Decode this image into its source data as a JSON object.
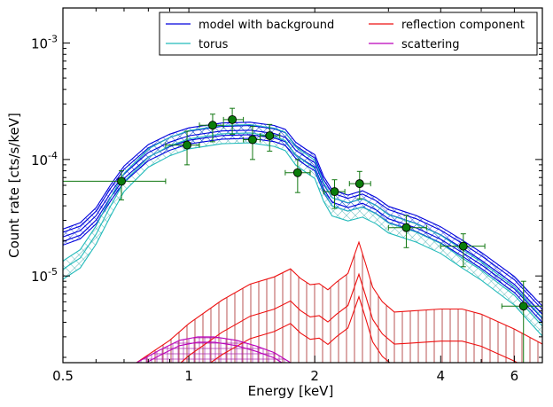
{
  "chart_data": {
    "type": "line",
    "title": "",
    "xlabel": "Energy [keV]",
    "ylabel": "Count rate [cts/s/keV]",
    "xscale": "log",
    "yscale": "log",
    "xlim": [
      0.5,
      7.0
    ],
    "ylim": [
      1.8e-06,
      0.002
    ],
    "x_ticks": [
      {
        "value": 0.5,
        "label": "0.5"
      },
      {
        "value": 1,
        "label": "1"
      },
      {
        "value": 2,
        "label": "2"
      },
      {
        "value": 4,
        "label": "4"
      },
      {
        "value": 6,
        "label": "6"
      }
    ],
    "y_ticks": [
      {
        "value": 1e-05,
        "base": "10",
        "exp": "-5"
      },
      {
        "value": 0.0001,
        "base": "10",
        "exp": "-4"
      },
      {
        "value": 0.001,
        "base": "10",
        "exp": "-3"
      }
    ],
    "legend": {
      "position": "top-right",
      "entries": [
        {
          "name": "model with background",
          "color": "#0000dd"
        },
        {
          "name": "reflection component",
          "color": "#ee1111"
        },
        {
          "name": "torus",
          "color": "#22bbbb"
        },
        {
          "name": "scattering",
          "color": "#bb00bb"
        }
      ]
    },
    "series": [
      {
        "name": "model with background",
        "color": "#0000dd",
        "x": [
          0.5,
          0.55,
          0.6,
          0.65,
          0.7,
          0.8,
          0.9,
          1.0,
          1.2,
          1.4,
          1.6,
          1.7,
          1.8,
          1.9,
          2.0,
          2.1,
          2.2,
          2.4,
          2.6,
          2.8,
          3.0,
          3.5,
          4.0,
          4.5,
          5.0,
          6.0,
          7.0
        ],
        "y": [
          2.3e-05,
          2.6e-05,
          3.5e-05,
          5.5e-05,
          8e-05,
          0.000122,
          0.00015,
          0.00017,
          0.000187,
          0.00019,
          0.000178,
          0.000165,
          0.000128,
          0.000112,
          0.0001,
          6.5e-05,
          5e-05,
          4.5e-05,
          4.9e-05,
          4.3e-05,
          3.6e-05,
          3e-05,
          2.4e-05,
          1.85e-05,
          1.45e-05,
          9e-06,
          5e-06
        ]
      },
      {
        "name": "torus",
        "color": "#22bbbb",
        "x": [
          0.5,
          0.55,
          0.6,
          0.65,
          0.7,
          0.8,
          0.9,
          1.0,
          1.2,
          1.4,
          1.6,
          1.7,
          1.8,
          1.9,
          2.0,
          2.1,
          2.2,
          2.4,
          2.6,
          2.8,
          3.0,
          3.5,
          4.0,
          4.5,
          5.0,
          6.0,
          7.0
        ],
        "y": [
          1.2e-05,
          1.5e-05,
          2.4e-05,
          4.2e-05,
          6.8e-05,
          0.00011,
          0.000138,
          0.000158,
          0.000175,
          0.000178,
          0.000166,
          0.000153,
          0.000115,
          0.0001,
          8.8e-05,
          5.6e-05,
          4.2e-05,
          3.8e-05,
          4.1e-05,
          3.6e-05,
          3e-05,
          2.5e-05,
          2e-05,
          1.5e-05,
          1.18e-05,
          7.2e-06,
          3.9e-06
        ]
      },
      {
        "name": "reflection component",
        "color": "#ee1111",
        "x": [
          0.75,
          0.9,
          1.0,
          1.2,
          1.4,
          1.6,
          1.75,
          1.85,
          1.95,
          2.05,
          2.15,
          2.25,
          2.4,
          2.55,
          2.65,
          2.75,
          2.9,
          3.1,
          3.4,
          4.0,
          4.5,
          5.0,
          6.0,
          7.0
        ],
        "y": [
          1.8e-06,
          2.8e-06,
          3.9e-06,
          6.2e-06,
          8.5e-06,
          9.8e-06,
          1.15e-05,
          9.5e-06,
          8.4e-06,
          8.6e-06,
          7.6e-06,
          8.8e-06,
          1.05e-05,
          1.95e-05,
          1.25e-05,
          8e-06,
          6e-06,
          4.9e-06,
          5e-06,
          5.2e-06,
          5.2e-06,
          4.7e-06,
          3.5e-06,
          2.6e-06
        ]
      },
      {
        "name": "scattering",
        "color": "#bb00bb",
        "x": [
          0.75,
          0.85,
          0.95,
          1.05,
          1.15,
          1.3,
          1.45,
          1.6,
          1.75
        ],
        "y": [
          1.8e-06,
          2.3e-06,
          2.8e-06,
          3e-06,
          3e-06,
          2.8e-06,
          2.5e-06,
          2.2e-06,
          1.8e-06
        ]
      }
    ],
    "data_points": {
      "name": "data",
      "color": "#117711",
      "x": [
        0.69,
        0.99,
        1.14,
        1.27,
        1.42,
        1.56,
        1.82,
        2.23,
        2.56,
        3.31,
        4.53,
        6.31
      ],
      "y": [
        6.5e-05,
        0.000133,
        0.000197,
        0.00022,
        0.000148,
        0.00016,
        7.7e-05,
        5.3e-05,
        6.2e-05,
        2.6e-05,
        1.8e-05,
        5.5e-06
      ],
      "xerr_low": [
        0.5,
        0.88,
        1.06,
        1.21,
        1.35,
        1.48,
        1.7,
        2.1,
        2.42,
        3.0,
        4.0,
        5.6
      ],
      "xerr_high": [
        0.88,
        1.06,
        1.21,
        1.35,
        1.48,
        1.65,
        1.95,
        2.36,
        2.72,
        3.7,
        5.1,
        7.0
      ],
      "yerr_low": [
        4.5e-05,
        9e-05,
        0.000142,
        0.000165,
        0.0001,
        0.000118,
        5.2e-05,
        3.8e-05,
        4.6e-05,
        1.75e-05,
        1.2e-05,
        1.8e-06
      ],
      "yerr_high": [
        8e-05,
        0.000175,
        0.000245,
        0.000275,
        0.000192,
        0.0002,
        0.0001,
        6.7e-05,
        7.9e-05,
        3.3e-05,
        2.3e-05,
        9e-06
      ]
    }
  }
}
